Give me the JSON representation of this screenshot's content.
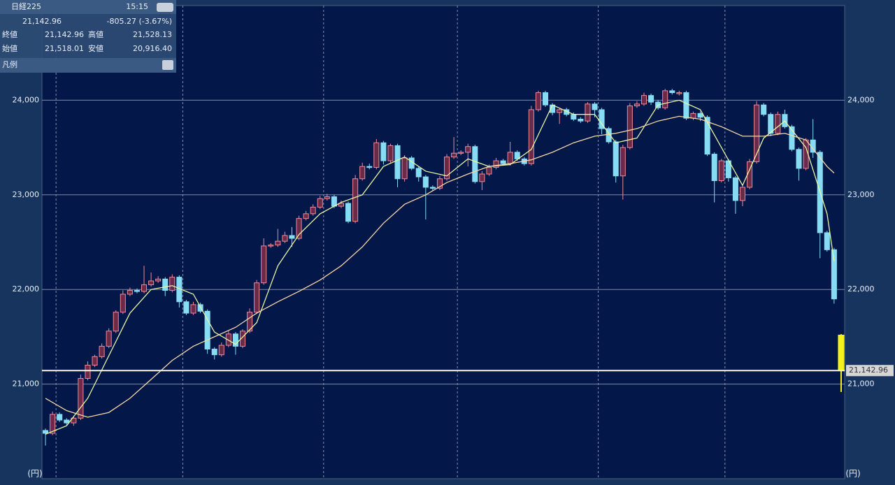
{
  "chart_data": {
    "type": "candlestick",
    "ylim": [
      20000,
      25000
    ],
    "yticks": [
      {
        "value": 21000,
        "label": "21,000"
      },
      {
        "value": 22000,
        "label": "22,000"
      },
      {
        "value": 23000,
        "label": "23,000"
      },
      {
        "value": 24000,
        "label": "24,000"
      }
    ],
    "y_unit": "(円)",
    "xlim": [
      -0.5,
      113.5
    ],
    "month_lines": [
      1.5,
      19.5,
      39.5,
      58.5,
      78.5,
      96.5
    ],
    "up_color": "#f08a9a",
    "down_color": "#86dcf2",
    "current_color": "#f5f020",
    "open": [
      20510,
      20480,
      20680,
      20620,
      20590,
      20640,
      21060,
      21200,
      21290,
      21400,
      21560,
      21760,
      21950,
      21990,
      21980,
      22050,
      22090,
      22110,
      21990,
      22130,
      21870,
      21750,
      21840,
      21770,
      21370,
      21310,
      21410,
      21530,
      21400,
      21560,
      21760,
      22070,
      22460,
      22470,
      22510,
      22570,
      22540,
      22750,
      22800,
      22870,
      22960,
      22980,
      22880,
      22910,
      22720,
      23170,
      23300,
      23290,
      23550,
      23360,
      23520,
      23170,
      23390,
      23280,
      23190,
      23080,
      23070,
      23170,
      23400,
      23440,
      23450,
      23510,
      23140,
      23220,
      23290,
      23360,
      23330,
      23450,
      23380,
      23330,
      23900,
      24080,
      23950,
      23870,
      23900,
      23850,
      23800,
      23780,
      23960,
      23900,
      23700,
      23560,
      23200,
      23500,
      23940,
      23960,
      24050,
      23980,
      23920,
      24100,
      24080,
      24080,
      23810,
      23860,
      23820,
      23430,
      23150,
      23360,
      23180,
      22940,
      23080,
      23350,
      23950,
      23850,
      23650,
      23850,
      23720,
      23480,
      23280,
      23580,
      23450,
      22600,
      22420,
      21518.01
    ],
    "high": [
      20530,
      20710,
      20700,
      20640,
      20660,
      21100,
      21240,
      21310,
      21430,
      21590,
      21780,
      21990,
      22020,
      22010,
      22250,
      22180,
      22140,
      22130,
      22160,
      22150,
      21890,
      21870,
      21860,
      21790,
      21390,
      21440,
      21560,
      21550,
      21580,
      21800,
      22100,
      22540,
      22490,
      22640,
      22610,
      22660,
      22780,
      22830,
      22900,
      22990,
      23010,
      23000,
      22940,
      22930,
      23210,
      23340,
      23330,
      23590,
      23570,
      23540,
      23540,
      23420,
      23410,
      23300,
      23210,
      23100,
      23200,
      23430,
      23610,
      23470,
      23540,
      23530,
      23250,
      23320,
      23390,
      23380,
      23560,
      23470,
      23400,
      23940,
      24100,
      24100,
      23970,
      23920,
      23920,
      23870,
      23820,
      23980,
      23980,
      23920,
      23720,
      23580,
      23530,
      23970,
      23990,
      24080,
      24070,
      24000,
      24120,
      24120,
      24100,
      24100,
      23880,
      23880,
      23840,
      23450,
      23380,
      23380,
      23200,
      23110,
      23380,
      23990,
      23970,
      23870,
      23880,
      23900,
      23740,
      23500,
      23600,
      23800,
      23470,
      22620,
      22440,
      21528.13
    ],
    "low": [
      20350,
      20460,
      20600,
      20570,
      20560,
      20620,
      21040,
      21180,
      21270,
      21380,
      21540,
      21740,
      21930,
      21960,
      21960,
      22030,
      22070,
      21930,
      21970,
      21810,
      21730,
      21730,
      21750,
      21320,
      21260,
      21290,
      21390,
      21310,
      21380,
      21540,
      21740,
      22050,
      22440,
      22450,
      22490,
      22450,
      22520,
      22730,
      22780,
      22850,
      22940,
      22860,
      22860,
      22700,
      22700,
      23150,
      23270,
      23270,
      23320,
      23340,
      23080,
      23140,
      23260,
      23140,
      22740,
      23040,
      23050,
      23150,
      23380,
      23420,
      23300,
      23120,
      23050,
      23200,
      23270,
      23310,
      23310,
      23360,
      23310,
      23310,
      23880,
      23930,
      23840,
      23750,
      23830,
      23780,
      23760,
      23760,
      23820,
      23640,
      23540,
      23130,
      22950,
      23480,
      23920,
      23940,
      23950,
      23900,
      23900,
      24060,
      24050,
      23790,
      23790,
      23780,
      23410,
      22920,
      23130,
      23140,
      22800,
      22880,
      23060,
      23330,
      23830,
      23620,
      23630,
      23700,
      23460,
      23150,
      23260,
      23390,
      22330,
      22400,
      21850,
      20916.4
    ],
    "close": [
      20480,
      20680,
      20620,
      20590,
      20640,
      21060,
      21200,
      21290,
      21400,
      21560,
      21760,
      21950,
      21990,
      21980,
      22050,
      22090,
      22110,
      21990,
      22130,
      21870,
      21750,
      21840,
      21770,
      21370,
      21310,
      21410,
      21530,
      21400,
      21560,
      21760,
      22070,
      22460,
      22470,
      22510,
      22570,
      22540,
      22750,
      22800,
      22870,
      22960,
      22980,
      22880,
      22910,
      22720,
      23170,
      23300,
      23290,
      23550,
      23360,
      23520,
      23170,
      23390,
      23280,
      23190,
      23080,
      23070,
      23170,
      23400,
      23440,
      23450,
      23510,
      23140,
      23220,
      23290,
      23360,
      23330,
      23450,
      23380,
      23330,
      23900,
      24080,
      23950,
      23870,
      23900,
      23850,
      23800,
      23780,
      23960,
      23900,
      23700,
      23560,
      23200,
      23500,
      23940,
      23960,
      24050,
      23980,
      23920,
      24100,
      24080,
      24080,
      23810,
      23860,
      23820,
      23430,
      23150,
      23360,
      23180,
      22940,
      23080,
      23350,
      23950,
      23850,
      23650,
      23850,
      23720,
      23480,
      23280,
      23580,
      23450,
      22600,
      22420,
      21900,
      21142.96
    ],
    "lines": [
      {
        "color": "#e8f5a4",
        "x": [
          0,
          3,
          6,
          9,
          12,
          15,
          18,
          21,
          24,
          27,
          30,
          33,
          36,
          39,
          42,
          45,
          48,
          51,
          54,
          57,
          60,
          63,
          66,
          69,
          72,
          75,
          78,
          81,
          84,
          87,
          90,
          93,
          96,
          99,
          102,
          105,
          108,
          111,
          112
        ],
        "values": [
          20470,
          20560,
          20850,
          21300,
          21750,
          22000,
          22040,
          21950,
          21550,
          21420,
          21650,
          22250,
          22580,
          22800,
          22920,
          23000,
          23300,
          23400,
          23250,
          23200,
          23380,
          23300,
          23320,
          23480,
          23950,
          23850,
          23850,
          23550,
          23600,
          23950,
          24000,
          23900,
          23500,
          23100,
          23600,
          23780,
          23500,
          22800,
          22300
        ]
      },
      {
        "color": "#f5d8a8",
        "x": [
          0,
          3,
          6,
          9,
          12,
          15,
          18,
          21,
          24,
          27,
          30,
          33,
          36,
          39,
          42,
          45,
          48,
          51,
          54,
          57,
          60,
          63,
          66,
          69,
          72,
          75,
          78,
          81,
          84,
          87,
          90,
          93,
          96,
          99,
          102,
          105,
          108,
          111,
          112
        ],
        "values": [
          20850,
          20720,
          20650,
          20700,
          20850,
          21050,
          21250,
          21400,
          21500,
          21600,
          21750,
          21870,
          21980,
          22100,
          22250,
          22450,
          22700,
          22900,
          23000,
          23130,
          23220,
          23300,
          23330,
          23370,
          23450,
          23550,
          23620,
          23650,
          23700,
          23780,
          23830,
          23800,
          23720,
          23620,
          23620,
          23650,
          23580,
          23300,
          23230
        ]
      }
    ],
    "last_price": {
      "value": 21142.96,
      "label": "21,142.96"
    }
  },
  "quote_panel": {
    "name": "日経225",
    "time": "15:15",
    "price": "21,142.96",
    "change": "-805.27 (-3.67%)",
    "close_label": "終値",
    "close": "21,142.96",
    "high_label": "高値",
    "high": "21,528.13",
    "open_label": "始値",
    "open": "21,518.01",
    "low_label": "安値",
    "low": "20,916.40",
    "legend": "凡例"
  }
}
